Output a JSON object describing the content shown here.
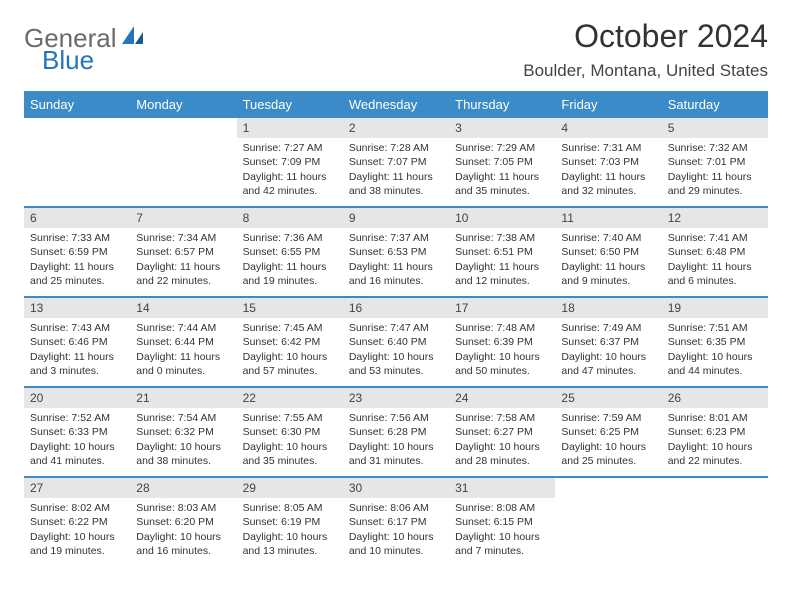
{
  "brand": {
    "word1": "General",
    "word2": "Blue"
  },
  "title": "October 2024",
  "location": "Boulder, Montana, United States",
  "colors": {
    "header_bg": "#3b8bc9",
    "header_text": "#ffffff",
    "daynum_bg": "#e6e6e6",
    "border": "#3b8bc9",
    "logo_gray": "#6b6b6b",
    "logo_blue": "#2176bd"
  },
  "days_of_week": [
    "Sunday",
    "Monday",
    "Tuesday",
    "Wednesday",
    "Thursday",
    "Friday",
    "Saturday"
  ],
  "weeks": [
    [
      null,
      null,
      {
        "n": "1",
        "sunrise": "Sunrise: 7:27 AM",
        "sunset": "Sunset: 7:09 PM",
        "daylight": "Daylight: 11 hours and 42 minutes."
      },
      {
        "n": "2",
        "sunrise": "Sunrise: 7:28 AM",
        "sunset": "Sunset: 7:07 PM",
        "daylight": "Daylight: 11 hours and 38 minutes."
      },
      {
        "n": "3",
        "sunrise": "Sunrise: 7:29 AM",
        "sunset": "Sunset: 7:05 PM",
        "daylight": "Daylight: 11 hours and 35 minutes."
      },
      {
        "n": "4",
        "sunrise": "Sunrise: 7:31 AM",
        "sunset": "Sunset: 7:03 PM",
        "daylight": "Daylight: 11 hours and 32 minutes."
      },
      {
        "n": "5",
        "sunrise": "Sunrise: 7:32 AM",
        "sunset": "Sunset: 7:01 PM",
        "daylight": "Daylight: 11 hours and 29 minutes."
      }
    ],
    [
      {
        "n": "6",
        "sunrise": "Sunrise: 7:33 AM",
        "sunset": "Sunset: 6:59 PM",
        "daylight": "Daylight: 11 hours and 25 minutes."
      },
      {
        "n": "7",
        "sunrise": "Sunrise: 7:34 AM",
        "sunset": "Sunset: 6:57 PM",
        "daylight": "Daylight: 11 hours and 22 minutes."
      },
      {
        "n": "8",
        "sunrise": "Sunrise: 7:36 AM",
        "sunset": "Sunset: 6:55 PM",
        "daylight": "Daylight: 11 hours and 19 minutes."
      },
      {
        "n": "9",
        "sunrise": "Sunrise: 7:37 AM",
        "sunset": "Sunset: 6:53 PM",
        "daylight": "Daylight: 11 hours and 16 minutes."
      },
      {
        "n": "10",
        "sunrise": "Sunrise: 7:38 AM",
        "sunset": "Sunset: 6:51 PM",
        "daylight": "Daylight: 11 hours and 12 minutes."
      },
      {
        "n": "11",
        "sunrise": "Sunrise: 7:40 AM",
        "sunset": "Sunset: 6:50 PM",
        "daylight": "Daylight: 11 hours and 9 minutes."
      },
      {
        "n": "12",
        "sunrise": "Sunrise: 7:41 AM",
        "sunset": "Sunset: 6:48 PM",
        "daylight": "Daylight: 11 hours and 6 minutes."
      }
    ],
    [
      {
        "n": "13",
        "sunrise": "Sunrise: 7:43 AM",
        "sunset": "Sunset: 6:46 PM",
        "daylight": "Daylight: 11 hours and 3 minutes."
      },
      {
        "n": "14",
        "sunrise": "Sunrise: 7:44 AM",
        "sunset": "Sunset: 6:44 PM",
        "daylight": "Daylight: 11 hours and 0 minutes."
      },
      {
        "n": "15",
        "sunrise": "Sunrise: 7:45 AM",
        "sunset": "Sunset: 6:42 PM",
        "daylight": "Daylight: 10 hours and 57 minutes."
      },
      {
        "n": "16",
        "sunrise": "Sunrise: 7:47 AM",
        "sunset": "Sunset: 6:40 PM",
        "daylight": "Daylight: 10 hours and 53 minutes."
      },
      {
        "n": "17",
        "sunrise": "Sunrise: 7:48 AM",
        "sunset": "Sunset: 6:39 PM",
        "daylight": "Daylight: 10 hours and 50 minutes."
      },
      {
        "n": "18",
        "sunrise": "Sunrise: 7:49 AM",
        "sunset": "Sunset: 6:37 PM",
        "daylight": "Daylight: 10 hours and 47 minutes."
      },
      {
        "n": "19",
        "sunrise": "Sunrise: 7:51 AM",
        "sunset": "Sunset: 6:35 PM",
        "daylight": "Daylight: 10 hours and 44 minutes."
      }
    ],
    [
      {
        "n": "20",
        "sunrise": "Sunrise: 7:52 AM",
        "sunset": "Sunset: 6:33 PM",
        "daylight": "Daylight: 10 hours and 41 minutes."
      },
      {
        "n": "21",
        "sunrise": "Sunrise: 7:54 AM",
        "sunset": "Sunset: 6:32 PM",
        "daylight": "Daylight: 10 hours and 38 minutes."
      },
      {
        "n": "22",
        "sunrise": "Sunrise: 7:55 AM",
        "sunset": "Sunset: 6:30 PM",
        "daylight": "Daylight: 10 hours and 35 minutes."
      },
      {
        "n": "23",
        "sunrise": "Sunrise: 7:56 AM",
        "sunset": "Sunset: 6:28 PM",
        "daylight": "Daylight: 10 hours and 31 minutes."
      },
      {
        "n": "24",
        "sunrise": "Sunrise: 7:58 AM",
        "sunset": "Sunset: 6:27 PM",
        "daylight": "Daylight: 10 hours and 28 minutes."
      },
      {
        "n": "25",
        "sunrise": "Sunrise: 7:59 AM",
        "sunset": "Sunset: 6:25 PM",
        "daylight": "Daylight: 10 hours and 25 minutes."
      },
      {
        "n": "26",
        "sunrise": "Sunrise: 8:01 AM",
        "sunset": "Sunset: 6:23 PM",
        "daylight": "Daylight: 10 hours and 22 minutes."
      }
    ],
    [
      {
        "n": "27",
        "sunrise": "Sunrise: 8:02 AM",
        "sunset": "Sunset: 6:22 PM",
        "daylight": "Daylight: 10 hours and 19 minutes."
      },
      {
        "n": "28",
        "sunrise": "Sunrise: 8:03 AM",
        "sunset": "Sunset: 6:20 PM",
        "daylight": "Daylight: 10 hours and 16 minutes."
      },
      {
        "n": "29",
        "sunrise": "Sunrise: 8:05 AM",
        "sunset": "Sunset: 6:19 PM",
        "daylight": "Daylight: 10 hours and 13 minutes."
      },
      {
        "n": "30",
        "sunrise": "Sunrise: 8:06 AM",
        "sunset": "Sunset: 6:17 PM",
        "daylight": "Daylight: 10 hours and 10 minutes."
      },
      {
        "n": "31",
        "sunrise": "Sunrise: 8:08 AM",
        "sunset": "Sunset: 6:15 PM",
        "daylight": "Daylight: 10 hours and 7 minutes."
      },
      null,
      null
    ]
  ]
}
